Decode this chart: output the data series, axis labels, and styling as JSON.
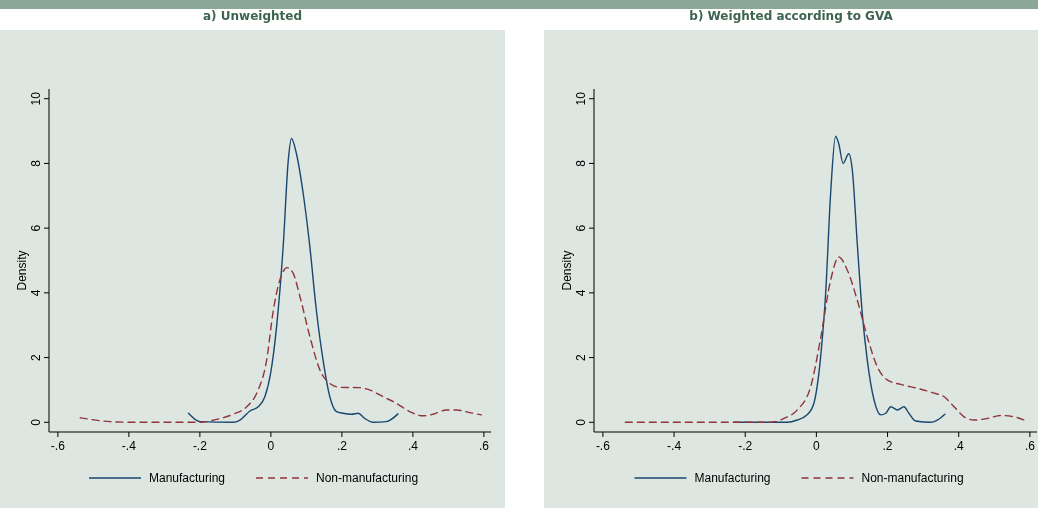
{
  "chart_data": [
    {
      "type": "line",
      "title": "a) Unweighted",
      "ylabel": "Density",
      "xlim": [
        -0.625,
        0.62
      ],
      "ylim": [
        -0.3,
        10.3
      ],
      "xticks": [
        {
          "value": -0.6,
          "label": "-.6"
        },
        {
          "value": -0.4,
          "label": "-.4"
        },
        {
          "value": -0.2,
          "label": "-.2"
        },
        0,
        {
          "value": 0.2,
          "label": ".2"
        },
        {
          "value": 0.4,
          "label": ".4"
        },
        {
          "value": 0.6,
          "label": ".6"
        }
      ],
      "yticks": [
        0,
        2,
        4,
        6,
        8,
        10
      ],
      "grid": false,
      "legend": "bottom",
      "marker": "none",
      "series": [
        {
          "name": "Manufacturing",
          "color": "#1a476f",
          "line_style": "solid",
          "x": [
            -0.232,
            -0.2,
            -0.106,
            -0.087,
            -0.059,
            -0.036,
            -0.017,
            -0.001,
            0.016,
            0.035,
            0.049,
            0.058,
            0.072,
            0.091,
            0.109,
            0.128,
            0.147,
            0.166,
            0.185,
            0.203,
            0.227,
            0.246,
            0.264,
            0.288,
            0.325,
            0.358
          ],
          "values": [
            0.28,
            0.02,
            0,
            0.07,
            0.35,
            0.48,
            0.79,
            1.5,
            2.95,
            5.5,
            8.1,
            8.77,
            8.3,
            7.07,
            5.5,
            3.47,
            1.92,
            0.79,
            0.33,
            0.28,
            0.25,
            0.28,
            0.12,
            0,
            0.02,
            0.26
          ]
        },
        {
          "name": "Non-manufacturing",
          "color": "#90353b",
          "line_style": "dashed",
          "x": [
            -0.537,
            -0.509,
            -0.453,
            -0.387,
            -0.2,
            -0.153,
            -0.106,
            -0.068,
            -0.04,
            -0.012,
            0.007,
            0.025,
            0.046,
            0.063,
            0.082,
            0.11,
            0.138,
            0.166,
            0.194,
            0.25,
            0.278,
            0.316,
            0.353,
            0.391,
            0.428,
            0.457,
            0.494,
            0.522,
            0.56,
            0.593
          ],
          "values": [
            0.14,
            0.09,
            0.02,
            0,
            0,
            0.09,
            0.25,
            0.48,
            0.9,
            1.92,
            3.47,
            4.39,
            4.78,
            4.6,
            3.88,
            2.64,
            1.62,
            1.2,
            1.08,
            1.07,
            1,
            0.79,
            0.59,
            0.33,
            0.2,
            0.25,
            0.38,
            0.38,
            0.3,
            0.23
          ]
        }
      ]
    },
    {
      "type": "line",
      "title": "b) Weighted according to GVA",
      "ylabel": "Density",
      "xlim": [
        -0.625,
        0.62
      ],
      "ylim": [
        -0.3,
        10.3
      ],
      "xticks": [
        {
          "value": -0.6,
          "label": "-.6"
        },
        {
          "value": -0.4,
          "label": "-.4"
        },
        {
          "value": -0.2,
          "label": "-.2"
        },
        0,
        {
          "value": 0.2,
          "label": ".2"
        },
        {
          "value": 0.4,
          "label": ".4"
        },
        {
          "value": 0.6,
          "label": ".6"
        }
      ],
      "yticks": [
        0,
        2,
        4,
        6,
        8,
        10
      ],
      "grid": false,
      "legend": "bottom",
      "marker": "none",
      "series": [
        {
          "name": "Manufacturing",
          "color": "#1a476f",
          "line_style": "solid",
          "x": [
            -0.232,
            -0.082,
            -0.054,
            -0.026,
            -0.007,
            0.011,
            0.026,
            0.04,
            0.054,
            0.063,
            0.075,
            0.091,
            0.101,
            0.115,
            0.129,
            0.143,
            0.162,
            0.181,
            0.195,
            0.209,
            0.228,
            0.246,
            0.26,
            0.279,
            0.321,
            0.34,
            0.361
          ],
          "values": [
            0,
            0,
            0.07,
            0.23,
            0.59,
            1.92,
            3.98,
            7.07,
            8.84,
            8.6,
            8.0,
            8.3,
            7.79,
            5.5,
            3.36,
            1.92,
            0.69,
            0.23,
            0.28,
            0.48,
            0.38,
            0.48,
            0.28,
            0.04,
            0,
            0.07,
            0.25
          ]
        },
        {
          "name": "Non-manufacturing",
          "color": "#90353b",
          "line_style": "dashed",
          "x": [
            -0.537,
            -0.129,
            -0.091,
            -0.054,
            -0.016,
            0.011,
            0.04,
            0.063,
            0.087,
            0.115,
            0.143,
            0.171,
            0.199,
            0.237,
            0.284,
            0.331,
            0.359,
            0.387,
            0.415,
            0.443,
            0.481,
            0.518,
            0.556,
            0.584
          ],
          "values": [
            0,
            0,
            0.12,
            0.38,
            1.1,
            2.54,
            4.39,
            5.11,
            4.7,
            3.77,
            2.64,
            1.72,
            1.31,
            1.17,
            1.05,
            0.9,
            0.79,
            0.48,
            0.17,
            0.07,
            0.12,
            0.21,
            0.17,
            0.07
          ]
        }
      ]
    }
  ]
}
